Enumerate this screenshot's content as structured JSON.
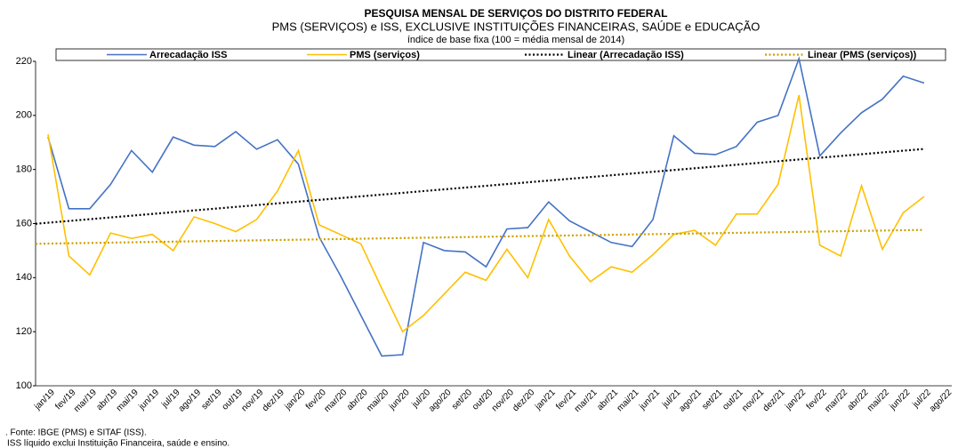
{
  "chart_data": {
    "type": "line",
    "title": "PESQUISA MENSAL DE SERVIÇOS DO DISTRITO FEDERAL",
    "subtitle": "PMS (SERVIÇOS) e ISS, EXCLUSIVE INSTITUIÇÕES FINANCEIRAS, SAÚDE e EDUCAÇÃO",
    "subtitle2": "índice de base fixa (100 = média mensal de 2014)",
    "notes": [
      ". Fonte: IBGE (PMS) e SITAF (ISS).",
      "ISS líquido exclui Instituição Financeira, saúde e ensino."
    ],
    "categories": [
      "jan/19",
      "fev/19",
      "mar/19",
      "abr/19",
      "mai/19",
      "jun/19",
      "jul/19",
      "ago/19",
      "set/19",
      "out/19",
      "nov/19",
      "dez/19",
      "jan/20",
      "fev/20",
      "mar/20",
      "abr/20",
      "mai/20",
      "jun/20",
      "jul/20",
      "ago/20",
      "set/20",
      "out/20",
      "nov/20",
      "dez/20",
      "jan/21",
      "fev/21",
      "mar/21",
      "abr/21",
      "mai/21",
      "jun/21",
      "jul/21",
      "ago/21",
      "set/21",
      "out/21",
      "nov/21",
      "dez/21",
      "jan/22",
      "fev/22",
      "mar/22",
      "abr/22",
      "mai/22",
      "jun/22",
      "jul/22",
      "ago/22"
    ],
    "series": [
      {
        "name": "Arrecadação ISS",
        "color": "#4472c4",
        "style": "solid",
        "values": [
          192,
          165.5,
          165.5,
          174.5,
          187,
          179,
          192,
          189,
          188.5,
          194,
          187.5,
          191,
          182,
          155,
          141,
          126,
          111,
          111.5,
          153,
          150,
          149.5,
          144,
          158,
          158.5,
          168,
          161,
          157,
          153,
          151.5,
          161.5,
          192.5,
          186,
          185.5,
          188.5,
          197.5,
          200,
          221,
          185,
          193.5,
          201,
          206,
          214.5,
          212,
          null
        ]
      },
      {
        "name": "PMS (serviços)",
        "color": "#ffc000",
        "style": "solid",
        "values": [
          193,
          148,
          141,
          156.5,
          154.5,
          156,
          150,
          162.5,
          160,
          157,
          161.5,
          172,
          187,
          159.5,
          156,
          152.5,
          136,
          120,
          126,
          134,
          142,
          139,
          150.5,
          140,
          161.5,
          148,
          138.5,
          144,
          142,
          148.5,
          156,
          157.5,
          152,
          163.5,
          163.5,
          174.5,
          207.5,
          152,
          148,
          174,
          150.5,
          164,
          170,
          null
        ]
      },
      {
        "name": "Linear (Arrecadação ISS)",
        "color": "#000000",
        "style": "dotted",
        "trend_of": 0
      },
      {
        "name": "Linear (PMS (serviços))",
        "color": "#c9a000",
        "style": "dotted",
        "trend_of": 1
      }
    ],
    "ylim": [
      100,
      220
    ],
    "yticks": [
      100,
      120,
      140,
      160,
      180,
      200,
      220
    ],
    "grid": false,
    "legend": "top"
  }
}
